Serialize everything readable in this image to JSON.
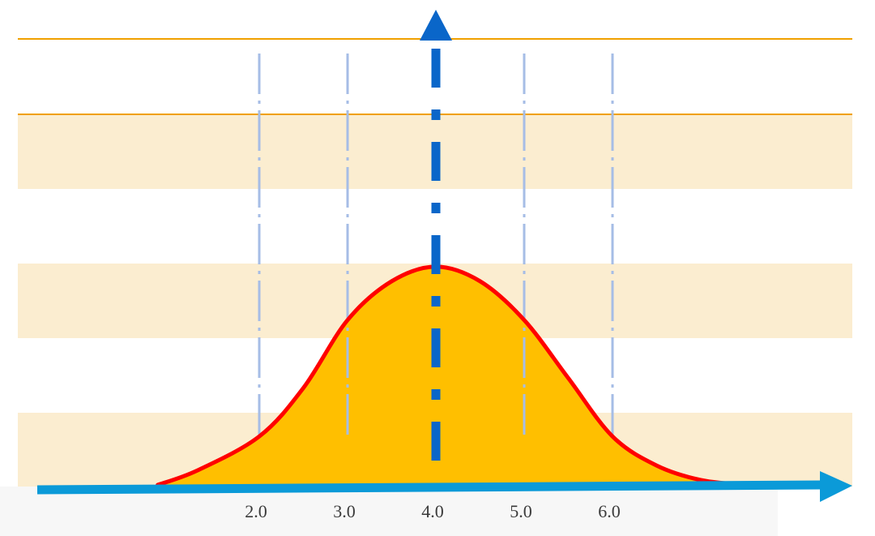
{
  "chart_data": {
    "type": "area",
    "title": "",
    "xlabel": "",
    "ylabel": "",
    "x_ticks": [
      "2.0",
      "3.0",
      "4.0",
      "5.0",
      "6.0"
    ],
    "x_tick_values": [
      2.0,
      3.0,
      4.0,
      5.0,
      6.0
    ],
    "xlim": [
      0.0,
      8.7
    ],
    "ylim": [
      0,
      1
    ],
    "mean_line_x": 4.0,
    "series": [
      {
        "x": [
          0.85,
          1.3,
          2.0,
          2.5,
          3.0,
          3.5,
          4.0,
          4.5,
          5.0,
          5.5,
          6.0,
          6.5,
          7.0,
          7.5
        ],
        "values": [
          0.0,
          0.03,
          0.1,
          0.2,
          0.34,
          0.42,
          0.45,
          0.42,
          0.34,
          0.22,
          0.1,
          0.04,
          0.01,
          0.0
        ]
      }
    ],
    "grid": true,
    "legend": "none",
    "colors": {
      "band_fill": "#fbedd0",
      "band_line": "#f0a000",
      "curve_fill": "#ffbf00",
      "curve_stroke": "#ff0000",
      "x_axis": "#0b9ad8",
      "y_axis": "#0a66c9",
      "guide_lines": "#a6bde6",
      "tick_text": "#3a3a3a"
    }
  }
}
